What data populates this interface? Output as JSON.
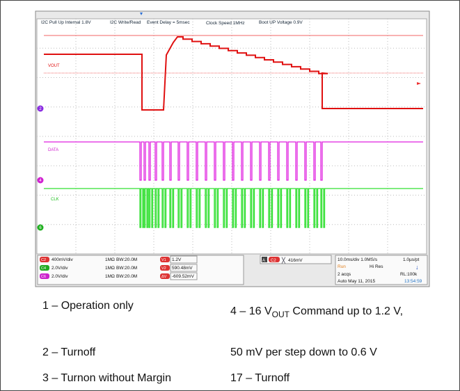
{
  "scope": {
    "header": [
      "I2C Pull Up Internal 1.8V",
      "I2C Write/Read",
      "Event Delay = 5msec",
      "Clock Speed 1MHz",
      "Boot UP Voltage 0.9V"
    ],
    "traces": {
      "vout": "VOUT",
      "data": "DATA",
      "clk": "CLK"
    },
    "markers": [
      "2",
      "4",
      "6"
    ],
    "channels": [
      {
        "tag": "C2",
        "scale": "400mV/div",
        "imp": "1MΩ",
        "bw": "BW:20.0M"
      },
      {
        "tag": "C4",
        "scale": "2.0V/div",
        "imp": "1MΩ",
        "bw": "BW:20.0M"
      },
      {
        "tag": "C6",
        "scale": "2.0V/div",
        "imp": "1MΩ",
        "bw": "BW:20.0M"
      }
    ],
    "cursors": [
      {
        "tag": "V1",
        "value": "1.2V"
      },
      {
        "tag": "V2",
        "value": "590.48mV"
      },
      {
        "tag": "ΔV",
        "value": "-609.52mV"
      }
    ],
    "trigger": {
      "mode": "A",
      "source": "C2",
      "level": "416mV"
    },
    "status": {
      "timebase": "10.0ms/div 1.0MS/s",
      "pt": "1.0µs/pt",
      "run": "Run",
      "res": "Hi Res",
      "acqs": "2 acqs",
      "rl": "RL:100k",
      "date": "Auto   May 11, 2015",
      "time": "13:54:59"
    }
  },
  "caption": {
    "items": [
      {
        "num": "1",
        "text": "Operation only"
      },
      {
        "num": "2",
        "text": "Turnoff"
      },
      {
        "num": "3",
        "text": "Turnon without Margin"
      },
      {
        "num": "4",
        "pre": "– 16 V",
        "sub": "OUT",
        "post": " Command up to 1.2 V,"
      },
      {
        "text": "50 mV per step down to 0.6 V"
      },
      {
        "num": "17",
        "text": "Turnoff"
      }
    ]
  }
}
